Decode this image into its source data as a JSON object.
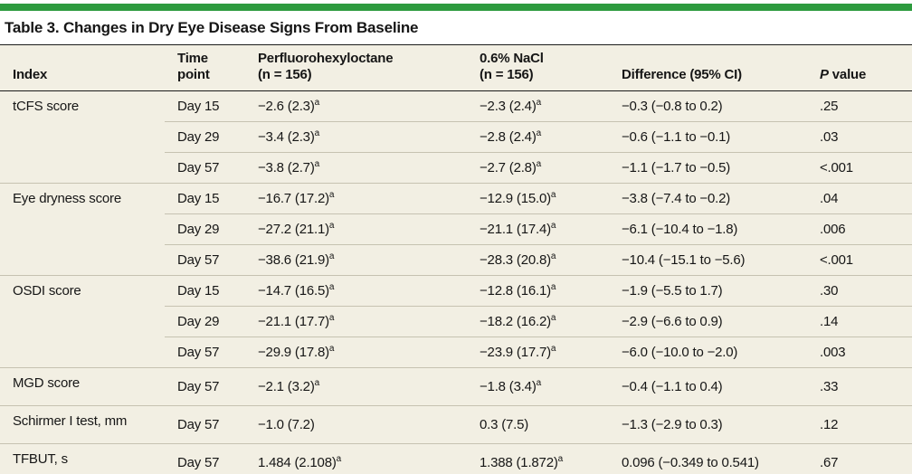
{
  "title": "Table 3. Changes in Dry Eye Disease Signs From Baseline",
  "colors": {
    "accent_green": "#2d9b3f",
    "table_background": "#f2efe3",
    "rule_dark": "#1c1c1c",
    "rule_light": "#c6c2b1"
  },
  "header": {
    "index": "Index",
    "time_line1": "Time",
    "time_line2": "point",
    "drug_line1": "Perfluorohexyloctane",
    "drug_line2": "(n = 156)",
    "nacl_line1": "0.6% NaCl",
    "nacl_line2": "(n = 156)",
    "diff": "Difference (95% CI)",
    "p_italic": "P",
    "p_rest": " value"
  },
  "rows": [
    {
      "index": "tCFS score",
      "time": "Day 15",
      "a": "−2.6 (2.3)",
      "a_sup": "a",
      "b": "−2.3 (2.4)",
      "b_sup": "a",
      "diff": "−0.3 (−0.8 to 0.2)",
      "p": ".25"
    },
    {
      "index": "",
      "time": "Day 29",
      "a": "−3.4 (2.3)",
      "a_sup": "a",
      "b": "−2.8 (2.4)",
      "b_sup": "a",
      "diff": "−0.6 (−1.1 to −0.1)",
      "p": ".03"
    },
    {
      "index": "",
      "time": "Day 57",
      "a": "−3.8 (2.7)",
      "a_sup": "a",
      "b": "−2.7 (2.8)",
      "b_sup": "a",
      "diff": "−1.1 (−1.7 to −0.5)",
      "p": "<.001"
    },
    {
      "index": "Eye dryness score",
      "time": "Day 15",
      "a": "−16.7 (17.2)",
      "a_sup": "a",
      "b": "−12.9 (15.0)",
      "b_sup": "a",
      "diff": "−3.8 (−7.4 to −0.2)",
      "p": ".04"
    },
    {
      "index": "",
      "time": "Day 29",
      "a": "−27.2 (21.1)",
      "a_sup": "a",
      "b": "−21.1 (17.4)",
      "b_sup": "a",
      "diff": "−6.1 (−10.4 to −1.8)",
      "p": ".006"
    },
    {
      "index": "",
      "time": "Day 57",
      "a": "−38.6 (21.9)",
      "a_sup": "a",
      "b": "−28.3 (20.8)",
      "b_sup": "a",
      "diff": "−10.4 (−15.1 to −5.6)",
      "p": "<.001"
    },
    {
      "index": "OSDI score",
      "time": "Day 15",
      "a": "−14.7 (16.5)",
      "a_sup": "a",
      "b": "−12.8 (16.1)",
      "b_sup": "a",
      "diff": "−1.9 (−5.5 to 1.7)",
      "p": ".30"
    },
    {
      "index": "",
      "time": "Day 29",
      "a": "−21.1 (17.7)",
      "a_sup": "a",
      "b": "−18.2 (16.2)",
      "b_sup": "a",
      "diff": "−2.9 (−6.6 to 0.9)",
      "p": ".14"
    },
    {
      "index": "",
      "time": "Day 57",
      "a": "−29.9 (17.8)",
      "a_sup": "a",
      "b": "−23.9 (17.7)",
      "b_sup": "a",
      "diff": "−6.0 (−10.0 to −2.0)",
      "p": ".003"
    },
    {
      "index": "MGD score",
      "time": "Day 57",
      "a": "−2.1 (3.2)",
      "a_sup": "a",
      "b": "−1.8 (3.4)",
      "b_sup": "a",
      "diff": "−0.4 (−1.1 to 0.4)",
      "p": ".33"
    },
    {
      "index": "Schirmer I test, mm",
      "time": "Day 57",
      "a": "−1.0 (7.2)",
      "a_sup": "",
      "b": "0.3 (7.5)",
      "b_sup": "",
      "diff": "−1.3 (−2.9 to 0.3)",
      "p": ".12"
    },
    {
      "index": "TFBUT, s",
      "time": "Day 57",
      "a": "1.484 (2.108)",
      "a_sup": "a",
      "b": "1.388 (1.872)",
      "b_sup": "a",
      "diff": "0.096 (−0.349 to 0.541)",
      "p": ".67"
    }
  ]
}
